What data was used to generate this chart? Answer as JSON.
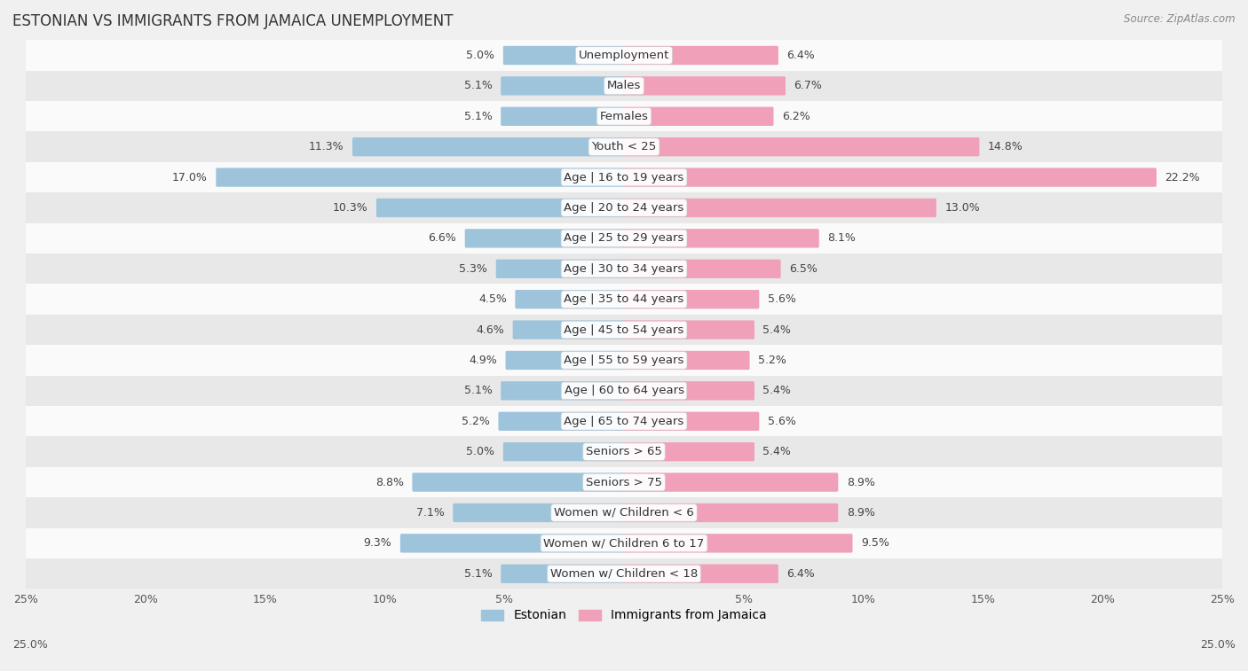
{
  "title": "ESTONIAN VS IMMIGRANTS FROM JAMAICA UNEMPLOYMENT",
  "source": "Source: ZipAtlas.com",
  "categories": [
    "Unemployment",
    "Males",
    "Females",
    "Youth < 25",
    "Age | 16 to 19 years",
    "Age | 20 to 24 years",
    "Age | 25 to 29 years",
    "Age | 30 to 34 years",
    "Age | 35 to 44 years",
    "Age | 45 to 54 years",
    "Age | 55 to 59 years",
    "Age | 60 to 64 years",
    "Age | 65 to 74 years",
    "Seniors > 65",
    "Seniors > 75",
    "Women w/ Children < 6",
    "Women w/ Children 6 to 17",
    "Women w/ Children < 18"
  ],
  "estonian": [
    5.0,
    5.1,
    5.1,
    11.3,
    17.0,
    10.3,
    6.6,
    5.3,
    4.5,
    4.6,
    4.9,
    5.1,
    5.2,
    5.0,
    8.8,
    7.1,
    9.3,
    5.1
  ],
  "jamaica": [
    6.4,
    6.7,
    6.2,
    14.8,
    22.2,
    13.0,
    8.1,
    6.5,
    5.6,
    5.4,
    5.2,
    5.4,
    5.6,
    5.4,
    8.9,
    8.9,
    9.5,
    6.4
  ],
  "estonian_color": "#9ec4dc",
  "jamaica_color": "#f0a0b8",
  "bg_color": "#f0f0f0",
  "row_light_color": "#fafafa",
  "row_dark_color": "#e8e8e8",
  "axis_limit": 25.0,
  "label_fontsize": 9.5,
  "title_fontsize": 12,
  "source_fontsize": 8.5,
  "legend_fontsize": 10,
  "value_fontsize": 9,
  "tick_fontsize": 9,
  "bar_height": 0.52
}
